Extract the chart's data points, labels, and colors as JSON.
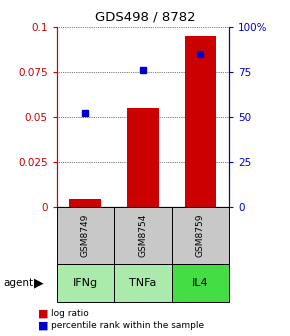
{
  "title": "GDS498 / 8782",
  "categories": [
    "IFNg",
    "TNFa",
    "IL4"
  ],
  "sample_ids": [
    "GSM8749",
    "GSM8754",
    "GSM8759"
  ],
  "log_ratio": [
    0.004,
    0.055,
    0.095
  ],
  "percentile_rank": [
    0.052,
    0.076,
    0.085
  ],
  "bar_color": "#cc0000",
  "dot_color": "#0000cc",
  "left_axis_color": "#cc0000",
  "right_axis_color": "#0000cc",
  "ylim": [
    0,
    0.1
  ],
  "yticks": [
    0,
    0.025,
    0.05,
    0.075,
    0.1
  ],
  "ytick_labels_left": [
    "0",
    "0.025",
    "0.05",
    "0.075",
    "0.1"
  ],
  "ytick_labels_right": [
    "0",
    "25",
    "50",
    "75",
    "100%"
  ],
  "agent_label": "agent",
  "cell_bg_gray": "#c8c8c8",
  "cell_bg_green_light": "#aaeaaa",
  "cell_bg_green_dark": "#44dd44",
  "legend_log_ratio": "log ratio",
  "legend_percentile": "percentile rank within the sample",
  "bar_width": 0.55
}
